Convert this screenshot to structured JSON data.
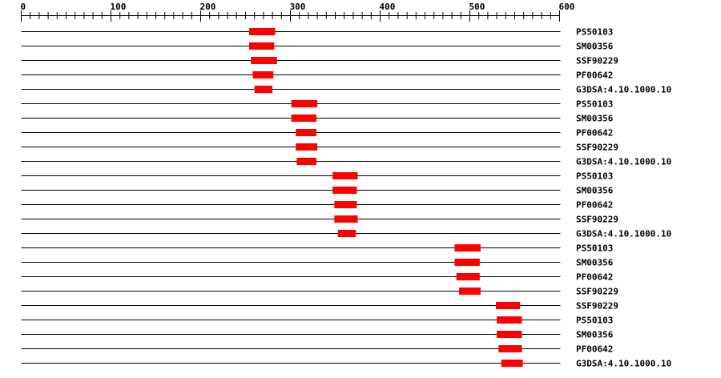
{
  "chart_data": {
    "type": "bar",
    "subtype": "horizontal-range",
    "title": "",
    "xlabel": "",
    "ylabel": "",
    "xlim": [
      0,
      600
    ],
    "x_ticks": [
      "0",
      "100",
      "200",
      "300",
      "400",
      "500",
      "600"
    ],
    "minor_tick_step": 10,
    "grid": false,
    "bar_color": "#ff0000",
    "line_color": "#000000",
    "rows": [
      {
        "label": "PS50103",
        "start": 254,
        "end": 283
      },
      {
        "label": "SM00356",
        "start": 254,
        "end": 282
      },
      {
        "label": "SSF90229",
        "start": 256,
        "end": 285
      },
      {
        "label": "PF00642",
        "start": 258,
        "end": 281
      },
      {
        "label": "G3DSA:4.10.1000.10",
        "start": 260,
        "end": 280
      },
      {
        "label": "PS50103",
        "start": 301,
        "end": 330
      },
      {
        "label": "SM00356",
        "start": 301,
        "end": 329
      },
      {
        "label": "PF00642",
        "start": 306,
        "end": 329
      },
      {
        "label": "SSF90229",
        "start": 306,
        "end": 330
      },
      {
        "label": "G3DSA:4.10.1000.10",
        "start": 307,
        "end": 329
      },
      {
        "label": "PS50103",
        "start": 347,
        "end": 375
      },
      {
        "label": "SM00356",
        "start": 347,
        "end": 374
      },
      {
        "label": "PF00642",
        "start": 349,
        "end": 374
      },
      {
        "label": "SSF90229",
        "start": 349,
        "end": 375
      },
      {
        "label": "G3DSA:4.10.1000.10",
        "start": 353,
        "end": 373
      },
      {
        "label": "PS50103",
        "start": 483,
        "end": 512
      },
      {
        "label": "SM00356",
        "start": 483,
        "end": 511
      },
      {
        "label": "PF00642",
        "start": 485,
        "end": 511
      },
      {
        "label": "SSF90229",
        "start": 488,
        "end": 512
      },
      {
        "label": "SSF90229",
        "start": 529,
        "end": 556
      },
      {
        "label": "PS50103",
        "start": 530,
        "end": 558
      },
      {
        "label": "SM00356",
        "start": 530,
        "end": 558
      },
      {
        "label": "PF00642",
        "start": 532,
        "end": 558
      },
      {
        "label": "G3DSA:4.10.1000.10",
        "start": 535,
        "end": 559
      }
    ]
  }
}
